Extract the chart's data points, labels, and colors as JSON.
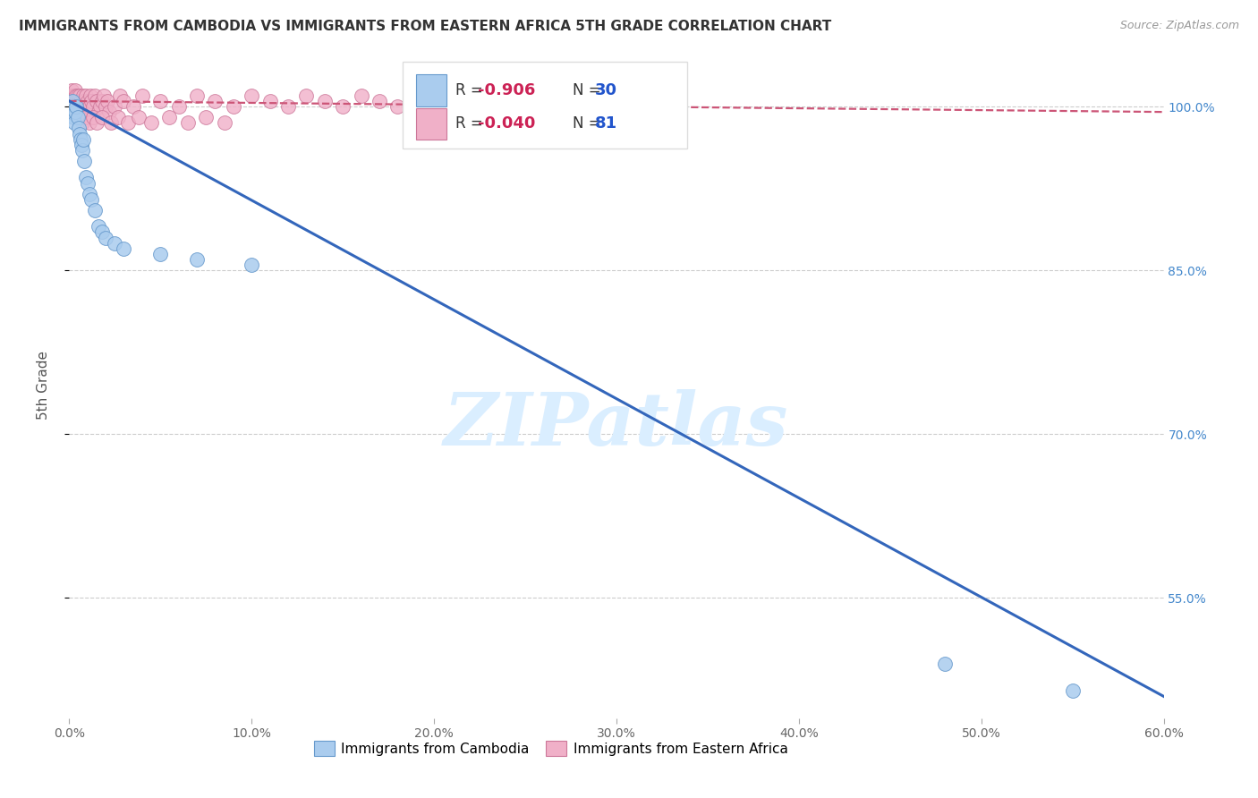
{
  "title": "IMMIGRANTS FROM CAMBODIA VS IMMIGRANTS FROM EASTERN AFRICA 5TH GRADE CORRELATION CHART",
  "source": "Source: ZipAtlas.com",
  "ylabel": "5th Grade",
  "xlim": [
    0.0,
    60.0
  ],
  "ylim": [
    44.0,
    105.0
  ],
  "ytick_vals": [
    55.0,
    70.0,
    85.0,
    100.0
  ],
  "xtick_vals": [
    0.0,
    10.0,
    20.0,
    30.0,
    40.0,
    50.0,
    60.0
  ],
  "cambodia_R": -0.906,
  "cambodia_N": 30,
  "eastern_africa_R": -0.04,
  "eastern_africa_N": 81,
  "cambodia_scatter_color": "#aaccee",
  "cambodia_edge_color": "#6699cc",
  "cambodia_line_color": "#3366bb",
  "eastern_africa_scatter_color": "#f0b0c8",
  "eastern_africa_edge_color": "#cc7799",
  "eastern_africa_line_color": "#cc5577",
  "background_color": "#ffffff",
  "watermark_color": "#daeeff",
  "grid_color": "#cccccc",
  "right_tick_color": "#4488cc",
  "legend_border_color": "#dddddd",
  "cambodia_x": [
    0.1,
    0.15,
    0.2,
    0.25,
    0.3,
    0.35,
    0.4,
    0.45,
    0.5,
    0.55,
    0.6,
    0.65,
    0.7,
    0.75,
    0.8,
    0.9,
    1.0,
    1.1,
    1.2,
    1.4,
    1.6,
    1.8,
    2.0,
    2.5,
    3.0,
    5.0,
    7.0,
    10.0,
    48.0,
    55.0
  ],
  "cambodia_y": [
    99.5,
    100.0,
    100.5,
    99.0,
    98.5,
    99.5,
    100.0,
    99.0,
    98.0,
    97.5,
    97.0,
    96.5,
    96.0,
    97.0,
    95.0,
    93.5,
    93.0,
    92.0,
    91.5,
    90.5,
    89.0,
    88.5,
    88.0,
    87.5,
    87.0,
    86.5,
    86.0,
    85.5,
    49.0,
    46.5
  ],
  "eastern_africa_x": [
    0.05,
    0.1,
    0.12,
    0.15,
    0.18,
    0.2,
    0.22,
    0.25,
    0.28,
    0.3,
    0.32,
    0.35,
    0.38,
    0.4,
    0.42,
    0.45,
    0.48,
    0.5,
    0.52,
    0.55,
    0.6,
    0.65,
    0.7,
    0.75,
    0.8,
    0.85,
    0.9,
    0.95,
    1.0,
    1.05,
    1.1,
    1.15,
    1.2,
    1.3,
    1.4,
    1.5,
    1.6,
    1.7,
    1.8,
    1.9,
    2.0,
    2.1,
    2.2,
    2.5,
    2.8,
    3.0,
    3.5,
    4.0,
    5.0,
    6.0,
    7.0,
    8.0,
    9.0,
    10.0,
    11.0,
    12.0,
    13.0,
    14.0,
    15.0,
    16.0,
    17.0,
    18.0,
    20.0,
    22.0,
    24.0,
    0.55,
    0.7,
    0.9,
    1.1,
    1.3,
    1.5,
    1.8,
    2.3,
    2.7,
    3.2,
    3.8,
    4.5,
    5.5,
    6.5,
    7.5,
    8.5
  ],
  "eastern_africa_y": [
    101.0,
    100.5,
    101.5,
    100.0,
    101.0,
    100.5,
    101.0,
    100.0,
    101.0,
    100.5,
    101.5,
    100.0,
    101.0,
    100.5,
    99.5,
    100.0,
    101.0,
    100.5,
    100.0,
    101.0,
    100.5,
    99.5,
    100.0,
    101.0,
    100.5,
    100.0,
    101.0,
    100.0,
    100.5,
    99.5,
    100.0,
    101.0,
    100.5,
    100.0,
    101.0,
    100.5,
    99.5,
    100.0,
    100.5,
    101.0,
    100.0,
    100.5,
    99.5,
    100.0,
    101.0,
    100.5,
    100.0,
    101.0,
    100.5,
    100.0,
    101.0,
    100.5,
    100.0,
    101.0,
    100.5,
    100.0,
    101.0,
    100.5,
    100.0,
    101.0,
    100.5,
    100.0,
    101.0,
    100.5,
    100.0,
    99.0,
    98.5,
    99.0,
    98.5,
    99.0,
    98.5,
    99.0,
    98.5,
    99.0,
    98.5,
    99.0,
    98.5,
    99.0,
    98.5,
    99.0,
    98.5
  ]
}
